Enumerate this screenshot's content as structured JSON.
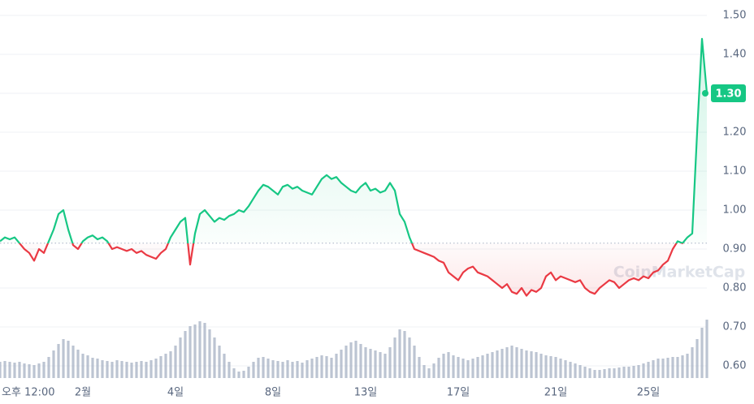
{
  "chart_data": {
    "type": "line",
    "categories": [
      null,
      null,
      null,
      null,
      null,
      "오후 12:00",
      null,
      null,
      null,
      null,
      null,
      null,
      null,
      null,
      null,
      null,
      null,
      "2월",
      null,
      null,
      null,
      null,
      null,
      null,
      null,
      null,
      null,
      null,
      null,
      null,
      null,
      null,
      null,
      null,
      null,
      null,
      "4일",
      null,
      null,
      null,
      null,
      null,
      null,
      null,
      null,
      null,
      null,
      null,
      null,
      null,
      null,
      null,
      null,
      null,
      null,
      null,
      "8일",
      null,
      null,
      null,
      null,
      null,
      null,
      null,
      null,
      null,
      null,
      null,
      null,
      null,
      null,
      null,
      null,
      null,
      null,
      "13일",
      null,
      null,
      null,
      null,
      null,
      null,
      null,
      null,
      null,
      null,
      null,
      null,
      null,
      null,
      null,
      null,
      null,
      null,
      "17일",
      null,
      null,
      null,
      null,
      null,
      null,
      null,
      null,
      null,
      null,
      null,
      null,
      null,
      null,
      null,
      null,
      null,
      null,
      null,
      "21일",
      null,
      null,
      null,
      null,
      null,
      null,
      null,
      null,
      null,
      null,
      null,
      null,
      null,
      null,
      null,
      null,
      null,
      null,
      "25일",
      null,
      null,
      null,
      null,
      null,
      null,
      null,
      null,
      null,
      null,
      null,
      null
    ],
    "series": [
      {
        "name": "Price",
        "color_up": "#16c784",
        "color_down": "#ea3943",
        "values": [
          0.92,
          0.93,
          0.925,
          0.93,
          0.915,
          0.9,
          0.89,
          0.87,
          0.9,
          0.89,
          0.92,
          0.95,
          0.99,
          1.0,
          0.95,
          0.91,
          0.9,
          0.92,
          0.93,
          0.935,
          0.925,
          0.93,
          0.92,
          0.9,
          0.905,
          0.9,
          0.895,
          0.9,
          0.89,
          0.895,
          0.885,
          0.88,
          0.875,
          0.89,
          0.9,
          0.93,
          0.95,
          0.97,
          0.98,
          0.86,
          0.94,
          0.99,
          1.0,
          0.985,
          0.97,
          0.98,
          0.975,
          0.985,
          0.99,
          1.0,
          0.995,
          1.01,
          1.03,
          1.05,
          1.065,
          1.06,
          1.05,
          1.04,
          1.06,
          1.065,
          1.055,
          1.06,
          1.05,
          1.045,
          1.04,
          1.06,
          1.08,
          1.09,
          1.08,
          1.085,
          1.07,
          1.06,
          1.05,
          1.045,
          1.06,
          1.07,
          1.05,
          1.055,
          1.045,
          1.05,
          1.07,
          1.05,
          0.99,
          0.97,
          0.93,
          0.9,
          0.895,
          0.89,
          0.885,
          0.88,
          0.87,
          0.865,
          0.84,
          0.83,
          0.82,
          0.84,
          0.85,
          0.855,
          0.84,
          0.835,
          0.83,
          0.82,
          0.81,
          0.8,
          0.81,
          0.79,
          0.785,
          0.8,
          0.78,
          0.795,
          0.79,
          0.8,
          0.83,
          0.84,
          0.82,
          0.83,
          0.825,
          0.82,
          0.815,
          0.82,
          0.8,
          0.79,
          0.785,
          0.8,
          0.81,
          0.82,
          0.815,
          0.8,
          0.81,
          0.82,
          0.825,
          0.82,
          0.83,
          0.825,
          0.84,
          0.845,
          0.86,
          0.87,
          0.9,
          0.92,
          0.915,
          0.93,
          0.94,
          1.2,
          1.44,
          1.3
        ]
      },
      {
        "name": "Volume",
        "color": "#a6b0c3",
        "values": [
          20,
          21,
          20,
          19,
          20,
          18,
          17,
          16,
          18,
          20,
          26,
          34,
          42,
          48,
          46,
          40,
          35,
          30,
          28,
          25,
          24,
          22,
          21,
          20,
          22,
          21,
          20,
          19,
          20,
          21,
          20,
          22,
          24,
          27,
          30,
          33,
          40,
          50,
          58,
          64,
          66,
          70,
          68,
          60,
          50,
          40,
          30,
          20,
          12,
          8,
          9,
          14,
          20,
          25,
          26,
          24,
          22,
          21,
          20,
          22,
          20,
          21,
          19,
          22,
          24,
          26,
          28,
          27,
          25,
          30,
          35,
          40,
          44,
          46,
          42,
          38,
          36,
          34,
          32,
          30,
          38,
          50,
          60,
          58,
          50,
          40,
          26,
          16,
          12,
          18,
          25,
          30,
          32,
          28,
          26,
          24,
          22,
          24,
          26,
          28,
          30,
          32,
          34,
          36,
          38,
          40,
          38,
          36,
          34,
          33,
          32,
          30,
          28,
          27,
          26,
          24,
          22,
          20,
          18,
          16,
          14,
          12,
          10,
          10,
          11,
          12,
          12,
          13,
          14,
          14,
          15,
          16,
          18,
          20,
          22,
          24,
          24,
          25,
          26,
          26,
          28,
          30,
          38,
          48,
          62,
          72
        ]
      }
    ],
    "baseline": 0.915,
    "current_price": {
      "value": 1.3,
      "label": "1.30"
    },
    "watermark": "CoinMarketCap",
    "ylim": [
      0.6,
      1.5
    ],
    "yticks": [
      {
        "value": 0.6,
        "label": "0.60"
      },
      {
        "value": 0.7,
        "label": "0.70"
      },
      {
        "value": 0.8,
        "label": "0.80"
      },
      {
        "value": 0.9,
        "label": "0.90"
      },
      {
        "value": 1.0,
        "label": "1.00"
      },
      {
        "value": 1.1,
        "label": "1.10"
      },
      {
        "value": 1.2,
        "label": "1.20"
      },
      {
        "value": 1.3,
        "label": "1.30"
      },
      {
        "value": 1.4,
        "label": "1.40"
      },
      {
        "value": 1.5,
        "label": "1.50"
      }
    ],
    "grid": true
  }
}
